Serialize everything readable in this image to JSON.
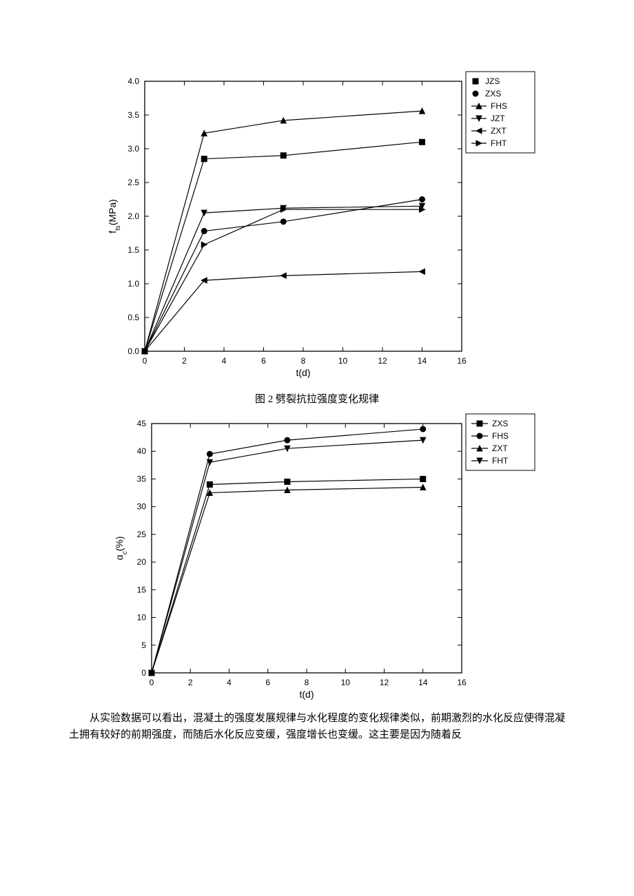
{
  "chart1": {
    "type": "line",
    "title": null,
    "xlabel": "t(d)",
    "ylabel": "f_ts(MPa)",
    "label_fontsize": 14,
    "tick_fontsize": 12,
    "xlim": [
      0,
      16
    ],
    "ylim": [
      0.0,
      4.0
    ],
    "xticks": [
      0,
      2,
      4,
      6,
      8,
      10,
      12,
      14,
      16
    ],
    "yticks": [
      0.0,
      0.5,
      1.0,
      1.5,
      2.0,
      2.5,
      3.0,
      3.5,
      4.0
    ],
    "grid": false,
    "background_color": "#ffffff",
    "axis_color": "#000000",
    "line_width": 1.2,
    "marker_size": 8,
    "legend": {
      "position": "top-right-outside",
      "border": true,
      "items": [
        {
          "label": "JZS",
          "marker": "square"
        },
        {
          "label": "ZXS",
          "marker": "circle"
        },
        {
          "label": "FHS",
          "marker": "triangle-up"
        },
        {
          "label": "JZT",
          "marker": "triangle-down"
        },
        {
          "label": "ZXT",
          "marker": "triangle-left"
        },
        {
          "label": "FHT",
          "marker": "triangle-right"
        }
      ]
    },
    "series": [
      {
        "name": "JZS",
        "marker": "square",
        "color": "#000000",
        "x": [
          0,
          3,
          7,
          14
        ],
        "y": [
          0,
          2.85,
          2.9,
          3.1
        ]
      },
      {
        "name": "ZXS",
        "marker": "circle",
        "color": "#000000",
        "x": [
          0,
          3,
          7,
          14
        ],
        "y": [
          0,
          1.78,
          1.92,
          2.25
        ]
      },
      {
        "name": "FHS",
        "marker": "triangle-up",
        "color": "#000000",
        "x": [
          0,
          3,
          7,
          14
        ],
        "y": [
          0,
          3.23,
          3.42,
          3.56
        ]
      },
      {
        "name": "JZT",
        "marker": "triangle-down",
        "color": "#000000",
        "x": [
          0,
          3,
          7,
          14
        ],
        "y": [
          0,
          2.05,
          2.12,
          2.15
        ]
      },
      {
        "name": "ZXT",
        "marker": "triangle-left",
        "color": "#000000",
        "x": [
          0,
          3,
          7,
          14
        ],
        "y": [
          0,
          1.05,
          1.12,
          1.18
        ]
      },
      {
        "name": "FHT",
        "marker": "triangle-right",
        "color": "#000000",
        "x": [
          0,
          3,
          7,
          14
        ],
        "y": [
          0,
          1.58,
          2.1,
          2.1
        ]
      }
    ]
  },
  "caption1": "图 2 劈裂抗拉强度变化规律",
  "chart2": {
    "type": "line",
    "title": null,
    "xlabel": "t(d)",
    "ylabel": "α_c(%)",
    "label_fontsize": 14,
    "tick_fontsize": 12,
    "xlim": [
      0,
      16
    ],
    "ylim": [
      0,
      45
    ],
    "xticks": [
      0,
      2,
      4,
      6,
      8,
      10,
      12,
      14,
      16
    ],
    "yticks": [
      0,
      5,
      10,
      15,
      20,
      25,
      30,
      35,
      40,
      45
    ],
    "grid": false,
    "background_color": "#ffffff",
    "axis_color": "#000000",
    "line_width": 1.2,
    "marker_size": 8,
    "legend": {
      "position": "top-right-outside",
      "border": true,
      "items": [
        {
          "label": "ZXS",
          "marker": "square"
        },
        {
          "label": "FHS",
          "marker": "circle"
        },
        {
          "label": "ZXT",
          "marker": "triangle-up"
        },
        {
          "label": "FHT",
          "marker": "triangle-down"
        }
      ]
    },
    "series": [
      {
        "name": "ZXS",
        "marker": "square",
        "color": "#000000",
        "x": [
          0,
          3,
          7,
          14
        ],
        "y": [
          0,
          34.0,
          34.5,
          35.0
        ]
      },
      {
        "name": "FHS",
        "marker": "circle",
        "color": "#000000",
        "x": [
          0,
          3,
          7,
          14
        ],
        "y": [
          0,
          39.5,
          42.0,
          44.0
        ]
      },
      {
        "name": "ZXT",
        "marker": "triangle-up",
        "color": "#000000",
        "x": [
          0,
          3,
          7,
          14
        ],
        "y": [
          0,
          32.5,
          33.0,
          33.5
        ]
      },
      {
        "name": "FHT",
        "marker": "triangle-down",
        "color": "#000000",
        "x": [
          0,
          3,
          7,
          14
        ],
        "y": [
          0,
          38.0,
          40.5,
          42.0
        ]
      }
    ]
  },
  "body_text": "从实验数据可以看出，混凝土的强度发展规律与水化程度的变化规律类似，前期激烈的水化反应使得混凝土拥有较好的前期强度，而随后水化反应变缓，强度增长也变缓。这主要是因为随着反"
}
